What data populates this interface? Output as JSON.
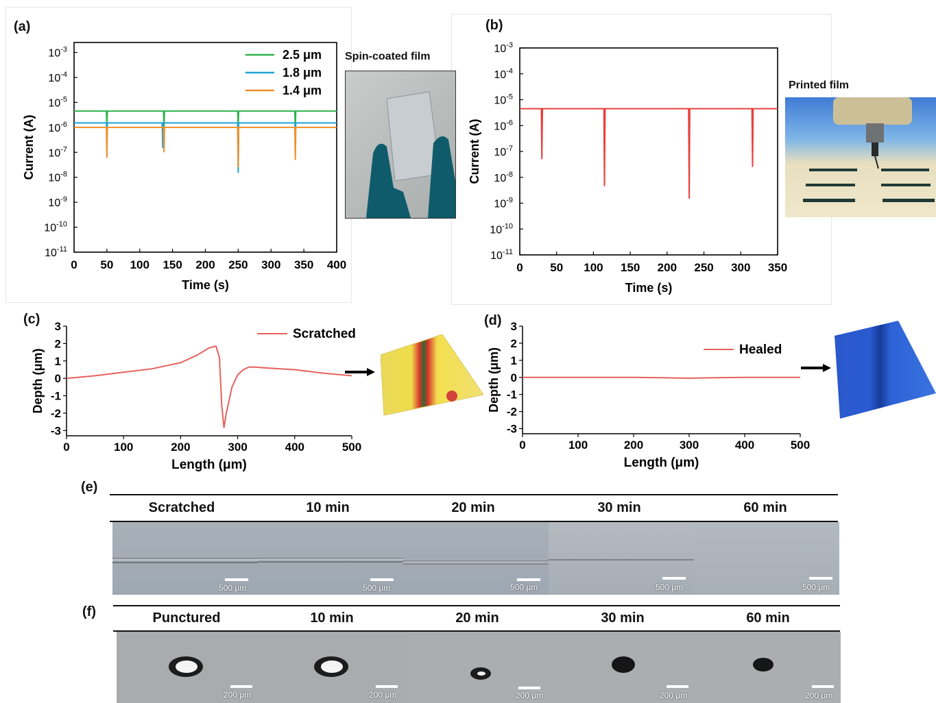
{
  "panels": {
    "a": {
      "label": "(a)",
      "photo_caption": "Spin-coated film",
      "chart": {
        "type": "line",
        "xlabel": "Time (s)",
        "ylabel": "Current (A)",
        "xlim": [
          0,
          400
        ],
        "xticks": [
          "0",
          "50",
          "100",
          "150",
          "200",
          "250",
          "300",
          "350",
          "400"
        ],
        "ylog": true,
        "yexp_range": [
          -11,
          -2.6
        ],
        "yticks_exp": [
          "-11",
          "-10",
          "-9",
          "-8",
          "-7",
          "-6",
          "-5",
          "-4",
          "-3"
        ],
        "series": [
          {
            "name": "2.5 μm",
            "color": "#2fb34a",
            "base": 4.5e-06,
            "dips": [
              {
                "x": 50,
                "y": 1e-06
              },
              {
                "x": 137,
                "y": 1e-06
              },
              {
                "x": 250,
                "y": 1e-06
              },
              {
                "x": 337,
                "y": 1e-06
              }
            ]
          },
          {
            "name": "1.8 μm",
            "color": "#1fa3d8",
            "base": 1.5e-06,
            "dips": [
              {
                "x": 50,
                "y": 6e-07
              },
              {
                "x": 135,
                "y": 1.5e-07
              },
              {
                "x": 250,
                "y": 1.5e-08
              },
              {
                "x": 337,
                "y": 5e-07
              }
            ]
          },
          {
            "name": "1.4 μm",
            "color": "#f0902a",
            "base": 1e-06,
            "dips": [
              {
                "x": 50,
                "y": 6e-08
              },
              {
                "x": 137,
                "y": 1e-07
              },
              {
                "x": 250,
                "y": 2.5e-08
              },
              {
                "x": 337,
                "y": 5e-08
              }
            ]
          }
        ]
      }
    },
    "b": {
      "label": "(b)",
      "photo_caption": "Printed film",
      "chart": {
        "type": "line",
        "xlabel": "Time (s)",
        "ylabel": "Current (A)",
        "xlim": [
          0,
          350
        ],
        "xticks": [
          "0",
          "50",
          "100",
          "150",
          "200",
          "250",
          "300",
          "350"
        ],
        "ylog": true,
        "yexp_range": [
          -11,
          -3
        ],
        "yticks_exp": [
          "-11",
          "-10",
          "-9",
          "-8",
          "-7",
          "-6",
          "-5",
          "-4",
          "-3"
        ],
        "series": [
          {
            "name": "",
            "color": "#e8413d",
            "base": 4.5e-06,
            "dips": [
              {
                "x": 30,
                "y": 5e-08
              },
              {
                "x": 115,
                "y": 4.5e-09
              },
              {
                "x": 230,
                "y": 1.5e-09
              },
              {
                "x": 316,
                "y": 2.5e-08
              }
            ]
          }
        ]
      }
    },
    "c": {
      "label": "(c)",
      "chart": {
        "type": "line",
        "xlabel": "Length (μm)",
        "ylabel": "Depth (μm)",
        "xlim": [
          0,
          500
        ],
        "ylim": [
          -3.3,
          3
        ],
        "xticks": [
          "0",
          "100",
          "200",
          "300",
          "400",
          "500"
        ],
        "yticks": [
          "-3",
          "-2",
          "-1",
          "0",
          "1",
          "2",
          "3"
        ],
        "series": [
          {
            "name": "Scratched",
            "color": "#e8605c",
            "x": [
              0,
              50,
              100,
              150,
              200,
              230,
              250,
              262,
              268,
              272,
              276,
              280,
              290,
              300,
              310,
              320,
              330,
              350,
              400,
              450,
              500
            ],
            "y": [
              0,
              0.15,
              0.35,
              0.55,
              0.9,
              1.35,
              1.75,
              1.85,
              1.2,
              -1.5,
              -2.85,
              -2.0,
              -0.5,
              0.2,
              0.5,
              0.65,
              0.65,
              0.6,
              0.5,
              0.3,
              0.15
            ]
          }
        ]
      }
    },
    "d": {
      "label": "(d)",
      "chart": {
        "type": "line",
        "xlabel": "Length (μm)",
        "ylabel": "Depth (μm)",
        "xlim": [
          0,
          500
        ],
        "ylim": [
          -3.3,
          3
        ],
        "xticks": [
          "0",
          "100",
          "200",
          "300",
          "400",
          "500"
        ],
        "yticks": [
          "-3",
          "-2",
          "-1",
          "0",
          "1",
          "2",
          "3"
        ],
        "series": [
          {
            "name": "Healed",
            "color": "#e8605c",
            "x": [
              0,
              100,
              200,
              250,
              300,
              350,
              400,
              500
            ],
            "y": [
              0,
              0,
              0,
              -0.02,
              -0.05,
              -0.02,
              0,
              0
            ]
          }
        ]
      }
    },
    "e": {
      "label": "(e)",
      "headers": [
        "Scratched",
        "10 min",
        "20 min",
        "30 min",
        "60 min"
      ],
      "scale": "500 μm"
    },
    "f": {
      "label": "(f)",
      "headers": [
        "Punctured",
        "10 min",
        "20 min",
        "30 min",
        "60 min"
      ],
      "scale": "200 μm"
    }
  }
}
